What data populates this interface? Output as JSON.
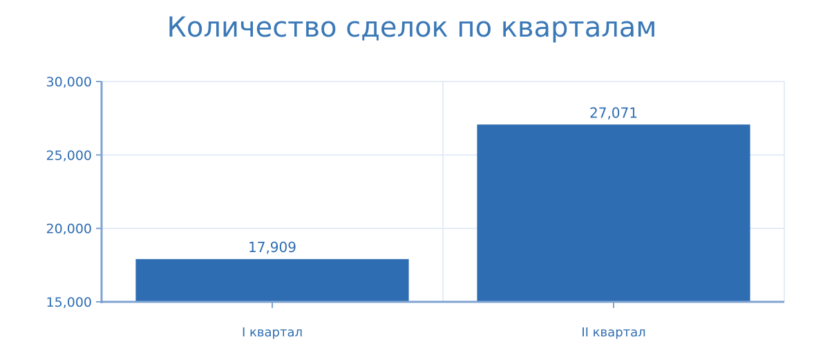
{
  "chart_data": {
    "type": "bar",
    "title": "Количество сделок по кварталам",
    "categories": [
      "I квартал",
      "II квартал"
    ],
    "values": [
      17909,
      27071
    ],
    "value_labels": [
      "17,909",
      "27,071"
    ],
    "ylim": [
      15000,
      30000
    ],
    "yticks": [
      15000,
      20000,
      25000,
      30000
    ],
    "ytick_labels": [
      "15,000",
      "20,000",
      "25,000",
      "30,000"
    ],
    "xlabel": "",
    "ylabel": "",
    "grid": true,
    "legend": "none",
    "bar_color": "#2f6db2",
    "text_color": "#2f6db2",
    "axis_color": "#7ea3d2",
    "grid_color": "#dbe6f3"
  }
}
